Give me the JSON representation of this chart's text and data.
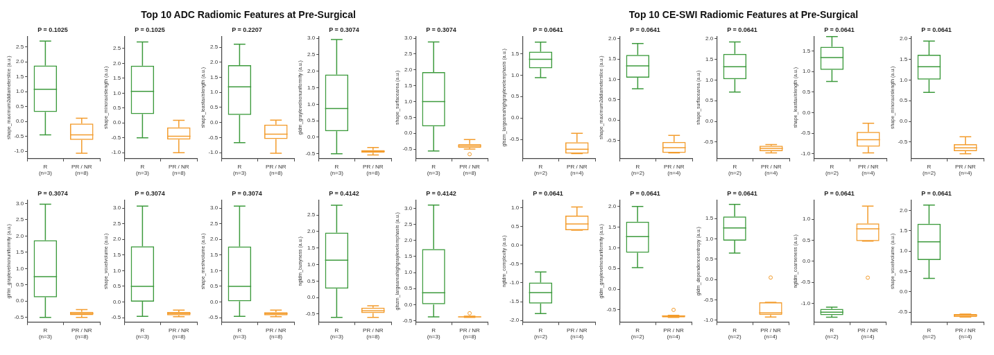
{
  "chart_data": [
    {
      "type": "other",
      "title": "Top 10 ADC Radiomic Features at Pre-Surgical"
    },
    {
      "type": "box",
      "title": "P = 0.1025",
      "ylabel": "shape_maximum2ddiameterslice (a.u.)",
      "categories": [
        "R\n(n=3)",
        "PR / NR\n(n=8)"
      ],
      "colors": [
        "#3c9a3c",
        "#f39c2c"
      ],
      "ylim": [
        -1.25,
        2.85
      ],
      "yticks": [
        {
          "value": -1,
          "label": "-1.0"
        },
        -0.5,
        {
          "value": 0,
          "label": "0.0"
        },
        0.5,
        {
          "value": 1,
          "label": "1.0"
        },
        1.5,
        {
          "value": 2,
          "label": "2.0"
        },
        2.5
      ],
      "grid": false,
      "boxes": [
        {
          "low": -0.45,
          "q1": 0.32,
          "median": 1.08,
          "q3": 1.88,
          "high": 2.7
        },
        {
          "low": -1.07,
          "q1": -0.62,
          "median": -0.45,
          "q3": -0.07,
          "high": 0.11
        }
      ]
    },
    {
      "type": "box",
      "title": "P = 0.1025",
      "ylabel": "shape_minoraxislength (a.u.)",
      "categories": [
        "R\n(n=3)",
        "PR / NR\n(n=8)"
      ],
      "colors": [
        "#3c9a3c",
        "#f39c2c"
      ],
      "ylim": [
        -1.2,
        2.9
      ],
      "yticks": [
        {
          "value": -1,
          "label": "-1.0"
        },
        -0.5,
        {
          "value": 0,
          "label": "0.0"
        },
        0.5,
        {
          "value": 1,
          "label": "1.0"
        },
        1.5,
        {
          "value": 2,
          "label": "2.0"
        },
        2.5
      ],
      "grid": false,
      "boxes": [
        {
          "low": -0.5,
          "q1": 0.3,
          "median": 1.06,
          "q3": 1.92,
          "high": 2.72
        },
        {
          "low": -1.0,
          "q1": -0.56,
          "median": -0.45,
          "q3": -0.15,
          "high": 0.09
        }
      ]
    },
    {
      "type": "box",
      "title": "P = 0.2207",
      "ylabel": "shape_leastaxislength (a.u.)",
      "categories": [
        "R\n(n=3)",
        "PR / NR\n(n=8)"
      ],
      "colors": [
        "#3c9a3c",
        "#f39c2c"
      ],
      "ylim": [
        -1.2,
        2.85
      ],
      "yticks": [
        {
          "value": -1,
          "label": "-1.0"
        },
        -0.5,
        {
          "value": 0,
          "label": "0.0"
        },
        0.5,
        {
          "value": 1,
          "label": "1.0"
        },
        1.5,
        {
          "value": 2,
          "label": "2.0"
        },
        2.5
      ],
      "grid": false,
      "boxes": [
        {
          "low": -0.67,
          "q1": 0.25,
          "median": 1.18,
          "q3": 1.9,
          "high": 2.6
        },
        {
          "low": -1.02,
          "q1": -0.55,
          "median": -0.39,
          "q3": -0.07,
          "high": 0.08
        }
      ]
    },
    {
      "type": "box",
      "title": "P = 0.3074",
      "ylabel": "gldm_graylevelnonuniformity (a.u.)",
      "categories": [
        "R\n(n=3)",
        "PR / NR\n(n=8)"
      ],
      "colors": [
        "#3c9a3c",
        "#f39c2c"
      ],
      "ylim": [
        -0.65,
        3.05
      ],
      "yticks": [
        -0.5,
        {
          "value": 0,
          "label": "0.0"
        },
        0.5,
        {
          "value": 1,
          "label": "1.0"
        },
        1.5,
        {
          "value": 2,
          "label": "2.0"
        },
        2.5,
        {
          "value": 3,
          "label": "3.0"
        }
      ],
      "grid": false,
      "boxes": [
        {
          "low": -0.5,
          "q1": 0.18,
          "median": 0.87,
          "q3": 1.9,
          "high": 2.96
        },
        {
          "low": -0.54,
          "q1": -0.47,
          "median": -0.43,
          "q3": -0.39,
          "high": -0.31
        }
      ]
    },
    {
      "type": "box",
      "title": "P = 0.3074",
      "ylabel": "shape_surfacearea (a.u.)",
      "categories": [
        "R\n(n=3)",
        "PR / NR\n(n=8)"
      ],
      "colors": [
        "#3c9a3c",
        "#f39c2c"
      ],
      "ylim": [
        -0.8,
        3.05
      ],
      "yticks": [
        -0.5,
        {
          "value": 0,
          "label": "0.0"
        },
        0.5,
        {
          "value": 1,
          "label": "1.0"
        },
        1.5,
        {
          "value": 2,
          "label": "2.0"
        },
        2.5,
        {
          "value": 3,
          "label": "3.0"
        }
      ],
      "grid": false,
      "boxes": [
        {
          "low": -0.56,
          "q1": 0.22,
          "median": 1.0,
          "q3": 1.93,
          "high": 2.88
        },
        {
          "low": -0.5,
          "q1": -0.46,
          "median": -0.4,
          "q3": -0.34,
          "high": -0.2,
          "outliers": [
            -0.66
          ]
        }
      ]
    },
    {
      "type": "box",
      "title": "P = 0.3074",
      "ylabel": "glrlm_graylevelnonuniformity (a.u.)",
      "categories": [
        "R\n(n=3)",
        "PR / NR\n(n=8)"
      ],
      "colors": [
        "#3c9a3c",
        "#f39c2c"
      ],
      "ylim": [
        -0.65,
        3.1
      ],
      "yticks": [
        -0.5,
        {
          "value": 0,
          "label": "0.0"
        },
        0.5,
        {
          "value": 1,
          "label": "1.0"
        },
        1.5,
        {
          "value": 2,
          "label": "2.0"
        },
        2.5,
        {
          "value": 3,
          "label": "3.0"
        }
      ],
      "grid": false,
      "boxes": [
        {
          "low": -0.5,
          "q1": 0.12,
          "median": 0.75,
          "q3": 1.87,
          "high": 2.98
        },
        {
          "low": -0.5,
          "q1": -0.43,
          "median": -0.38,
          "q3": -0.33,
          "high": -0.26
        }
      ]
    },
    {
      "type": "box",
      "title": "P = 0.3074",
      "ylabel": "shape_voxelvolume (a.u.)",
      "categories": [
        "R\n(n=3)",
        "PR / NR\n(n=8)"
      ],
      "colors": [
        "#3c9a3c",
        "#f39c2c"
      ],
      "ylim": [
        -0.65,
        3.25
      ],
      "yticks": [
        -0.5,
        {
          "value": 0,
          "label": "0.0"
        },
        0.5,
        {
          "value": 1,
          "label": "1.0"
        },
        1.5,
        {
          "value": 2,
          "label": "2.0"
        },
        2.5,
        {
          "value": 3,
          "label": "3.0"
        }
      ],
      "grid": false,
      "boxes": [
        {
          "low": -0.46,
          "q1": 0.01,
          "median": 0.5,
          "q3": 1.78,
          "high": 3.06
        },
        {
          "low": -0.47,
          "q1": -0.43,
          "median": -0.37,
          "q3": -0.32,
          "high": -0.26
        }
      ]
    },
    {
      "type": "box",
      "title": "P = 0.3074",
      "ylabel": "shape_meshvolume (a.u.)",
      "categories": [
        "R\n(n=3)",
        "PR / NR\n(n=8)"
      ],
      "colors": [
        "#3c9a3c",
        "#f39c2c"
      ],
      "ylim": [
        -0.65,
        3.25
      ],
      "yticks": [
        -0.5,
        {
          "value": 0,
          "label": "0.0"
        },
        0.5,
        {
          "value": 1,
          "label": "1.0"
        },
        1.5,
        {
          "value": 2,
          "label": "2.0"
        },
        2.5,
        {
          "value": 3,
          "label": "3.0"
        }
      ],
      "grid": false,
      "boxes": [
        {
          "low": -0.46,
          "q1": 0.02,
          "median": 0.5,
          "q3": 1.77,
          "high": 3.06
        },
        {
          "low": -0.47,
          "q1": -0.43,
          "median": -0.38,
          "q3": -0.33,
          "high": -0.26
        }
      ]
    },
    {
      "type": "box",
      "title": "P = 0.4142",
      "ylabel": "ngtdm_busyness (a.u.)",
      "categories": [
        "R\n(n=3)",
        "PR / NR\n(n=8)"
      ],
      "colors": [
        "#3c9a3c",
        "#f39c2c"
      ],
      "ylim": [
        -0.75,
        2.95
      ],
      "yticks": [
        -0.5,
        {
          "value": 0,
          "label": "0.0"
        },
        0.5,
        {
          "value": 1,
          "label": "1.0"
        },
        1.5,
        {
          "value": 2,
          "label": "2.0"
        },
        2.5
      ],
      "grid": false,
      "boxes": [
        {
          "low": -0.6,
          "q1": 0.27,
          "median": 1.13,
          "q3": 1.97,
          "high": 2.8
        },
        {
          "low": -0.6,
          "q1": -0.47,
          "median": -0.4,
          "q3": -0.31,
          "high": -0.25
        }
      ]
    },
    {
      "type": "box",
      "title": "P = 0.4142",
      "ylabel": "glszm_largeareahighgraylevelemphasis (a.u.)",
      "categories": [
        "R\n(n=3)",
        "PR / NR\n(n=8)"
      ],
      "colors": [
        "#3c9a3c",
        "#f39c2c"
      ],
      "ylim": [
        -0.55,
        3.25
      ],
      "yticks": [
        -0.5,
        {
          "value": 0,
          "label": "0.0"
        },
        0.5,
        {
          "value": 1,
          "label": "1.0"
        },
        1.5,
        {
          "value": 2,
          "label": "2.0"
        },
        2.5,
        {
          "value": 3,
          "label": "3.0"
        }
      ],
      "grid": false,
      "boxes": [
        {
          "low": -0.38,
          "q1": 0.0,
          "median": 0.37,
          "q3": 1.73,
          "high": 3.1
        },
        {
          "low": -0.4,
          "q1": -0.39,
          "median": -0.38,
          "q3": -0.37,
          "high": -0.36,
          "outliers": [
            -0.27
          ]
        }
      ]
    },
    {
      "type": "other",
      "title": "Top 10 CE-SWI Radiomic Features at Pre-Surgical"
    },
    {
      "type": "box",
      "title": "P = 0.0641",
      "ylabel": "glszm_largeareahighgraylevelemphasis (a.u.)",
      "categories": [
        "R\n(n=2)",
        "PR / NR\n(n=4)"
      ],
      "colors": [
        "#3c9a3c",
        "#f39c2c"
      ],
      "ylim": [
        -0.95,
        1.9
      ],
      "yticks": [
        -0.5,
        {
          "value": 0,
          "label": "0.0"
        },
        0.5,
        {
          "value": 1,
          "label": "1.0"
        },
        1.5
      ],
      "grid": false,
      "boxes": [
        {
          "low": 0.94,
          "q1": 1.16,
          "median": 1.37,
          "q3": 1.55,
          "high": 1.77
        },
        {
          "low": -0.83,
          "q1": -0.83,
          "median": -0.73,
          "q3": -0.57,
          "high": -0.36
        }
      ]
    },
    {
      "type": "box",
      "title": "P = 0.0641",
      "ylabel": "shape_maximum2ddiameterslice (a.u.)",
      "categories": [
        "R\n(n=2)",
        "PR / NR\n(n=4)"
      ],
      "colors": [
        "#3c9a3c",
        "#f39c2c"
      ],
      "ylim": [
        -0.95,
        2.05
      ],
      "yticks": [
        -0.5,
        {
          "value": 0,
          "label": "0.0"
        },
        0.5,
        {
          "value": 1,
          "label": "1.0"
        },
        1.5,
        {
          "value": 2,
          "label": "2.0"
        }
      ],
      "grid": false,
      "boxes": [
        {
          "low": 0.77,
          "q1": 1.04,
          "median": 1.33,
          "q3": 1.6,
          "high": 1.88
        },
        {
          "low": -0.81,
          "q1": -0.81,
          "median": -0.68,
          "q3": -0.54,
          "high": -0.38
        }
      ]
    },
    {
      "type": "box",
      "title": "P = 0.0641",
      "ylabel": "shape_surfacearea (a.u.)",
      "categories": [
        "R\n(n=2)",
        "PR / NR\n(n=4)"
      ],
      "colors": [
        "#3c9a3c",
        "#f39c2c"
      ],
      "ylim": [
        -0.9,
        2.05
      ],
      "yticks": [
        -0.5,
        {
          "value": 0,
          "label": "0.0"
        },
        0.5,
        {
          "value": 1,
          "label": "1.0"
        },
        1.5,
        {
          "value": 2,
          "label": "2.0"
        }
      ],
      "grid": false,
      "boxes": [
        {
          "low": 0.71,
          "q1": 1.02,
          "median": 1.32,
          "q3": 1.63,
          "high": 1.92
        },
        {
          "low": -0.76,
          "q1": -0.72,
          "median": -0.65,
          "q3": -0.59,
          "high": -0.56
        }
      ]
    },
    {
      "type": "box",
      "title": "P = 0.0641",
      "ylabel": "shape_leastaxislength (a.u.)",
      "categories": [
        "R\n(n=2)",
        "PR / NR\n(n=4)"
      ],
      "colors": [
        "#3c9a3c",
        "#f39c2c"
      ],
      "ylim": [
        -1.12,
        1.85
      ],
      "yticks": [
        {
          "value": -1,
          "label": "-1.0"
        },
        -0.5,
        {
          "value": 0,
          "label": "0.0"
        },
        0.5,
        {
          "value": 1,
          "label": "1.0"
        },
        1.5
      ],
      "grid": false,
      "boxes": [
        {
          "low": 0.76,
          "q1": 1.04,
          "median": 1.34,
          "q3": 1.6,
          "high": 1.85
        },
        {
          "low": -0.98,
          "q1": -0.83,
          "median": -0.66,
          "q3": -0.47,
          "high": -0.26
        }
      ]
    },
    {
      "type": "box",
      "title": "P = 0.0641",
      "ylabel": "shape_minoraxislength (a.u.)",
      "categories": [
        "R\n(n=2)",
        "PR / NR\n(n=4)"
      ],
      "colors": [
        "#3c9a3c",
        "#f39c2c"
      ],
      "ylim": [
        -0.9,
        2.05
      ],
      "yticks": [
        -0.5,
        {
          "value": 0,
          "label": "0.0"
        },
        0.5,
        {
          "value": 1,
          "label": "1.0"
        },
        1.5,
        {
          "value": 2,
          "label": "2.0"
        }
      ],
      "grid": false,
      "boxes": [
        {
          "low": 0.7,
          "q1": 1.01,
          "median": 1.32,
          "q3": 1.61,
          "high": 1.94
        },
        {
          "low": -0.78,
          "q1": -0.72,
          "median": -0.64,
          "q3": -0.55,
          "high": -0.37
        }
      ]
    },
    {
      "type": "box",
      "title": "P = 0.0641",
      "ylabel": "ngtdm_complexity (a.u.)",
      "categories": [
        "R\n(n=2)",
        "PR / NR\n(n=4)"
      ],
      "colors": [
        "#3c9a3c",
        "#f39c2c"
      ],
      "ylim": [
        -2.05,
        1.2
      ],
      "yticks": [
        {
          "value": -2,
          "label": "-2.0"
        },
        -1.5,
        {
          "value": -1,
          "label": "-1.0"
        },
        -0.5,
        {
          "value": 0,
          "label": "0.0"
        },
        0.5,
        {
          "value": 1,
          "label": "1.0"
        }
      ],
      "grid": false,
      "boxes": [
        {
          "low": -1.82,
          "q1": -1.55,
          "median": -1.26,
          "q3": -0.99,
          "high": -0.71
        },
        {
          "low": 0.4,
          "q1": 0.4,
          "median": 0.57,
          "q3": 0.79,
          "high": 1.02
        }
      ]
    },
    {
      "type": "box",
      "title": "P = 0.0641",
      "ylabel": "gldm_graylevelnonuniformity (a.u.)",
      "categories": [
        "R\n(n=2)",
        "PR / NR\n(n=4)"
      ],
      "colors": [
        "#3c9a3c",
        "#f39c2c"
      ],
      "ylim": [
        -0.8,
        2.15
      ],
      "yticks": [
        -0.5,
        {
          "value": 0,
          "label": "0.0"
        },
        0.5,
        {
          "value": 1,
          "label": "1.0"
        },
        1.5,
        {
          "value": 2,
          "label": "2.0"
        }
      ],
      "grid": false,
      "boxes": [
        {
          "low": 0.52,
          "q1": 0.88,
          "median": 1.27,
          "q3": 1.63,
          "high": 2.0
        },
        {
          "low": -0.68,
          "q1": -0.68,
          "median": -0.65,
          "q3": -0.63,
          "high": -0.63,
          "outliers": [
            -0.5
          ]
        }
      ]
    },
    {
      "type": "box",
      "title": "P = 0.0641",
      "ylabel": "gldm_dependenceentropy (a.u.)",
      "categories": [
        "R\n(n=2)",
        "PR / NR\n(n=4)"
      ],
      "colors": [
        "#3c9a3c",
        "#f39c2c"
      ],
      "ylim": [
        -1.05,
        1.95
      ],
      "yticks": [
        {
          "value": -1,
          "label": "-1.0"
        },
        -0.5,
        {
          "value": 0,
          "label": "0.0"
        },
        0.5,
        {
          "value": 1,
          "label": "1.0"
        },
        1.5
      ],
      "grid": false,
      "boxes": [
        {
          "low": 0.65,
          "q1": 0.96,
          "median": 1.27,
          "q3": 1.55,
          "high": 1.85
        },
        {
          "low": -0.92,
          "q1": -0.87,
          "median": -0.82,
          "q3": -0.56,
          "high": -0.56,
          "outliers": [
            0.05
          ]
        }
      ]
    },
    {
      "type": "box",
      "title": "P = 0.0641",
      "ylabel": "ngtdm_coarseness (a.u.)",
      "categories": [
        "R\n(n=2)",
        "PR / NR\n(n=4)"
      ],
      "colors": [
        "#3c9a3c",
        "#f39c2c"
      ],
      "ylim": [
        -1.45,
        1.45
      ],
      "yticks": [
        {
          "value": -1,
          "label": "-1.0"
        },
        -0.5,
        {
          "value": 0,
          "label": "0.0"
        },
        0.5,
        {
          "value": 1,
          "label": "1.0"
        }
      ],
      "grid": false,
      "boxes": [
        {
          "low": -1.33,
          "q1": -1.28,
          "median": -1.21,
          "q3": -1.13,
          "high": -1.09
        },
        {
          "low": 0.48,
          "q1": 0.48,
          "median": 0.77,
          "q3": 0.9,
          "high": 1.31,
          "outliers": [
            -0.39
          ]
        }
      ]
    },
    {
      "type": "box",
      "title": "P = 0.0641",
      "ylabel": "shape_voxelvolume (a.u.)",
      "categories": [
        "R\n(n=2)",
        "PR / NR\n(n=4)"
      ],
      "colors": [
        "#3c9a3c",
        "#f39c2c"
      ],
      "ylim": [
        -0.75,
        2.25
      ],
      "yticks": [
        -0.5,
        {
          "value": 0,
          "label": "0.0"
        },
        0.5,
        {
          "value": 1,
          "label": "1.0"
        },
        1.5,
        {
          "value": 2,
          "label": "2.0"
        }
      ],
      "grid": false,
      "boxes": [
        {
          "low": 0.33,
          "q1": 0.78,
          "median": 1.23,
          "q3": 1.67,
          "high": 2.13
        },
        {
          "low": -0.62,
          "q1": -0.62,
          "median": -0.58,
          "q3": -0.55,
          "high": -0.55
        }
      ]
    }
  ]
}
